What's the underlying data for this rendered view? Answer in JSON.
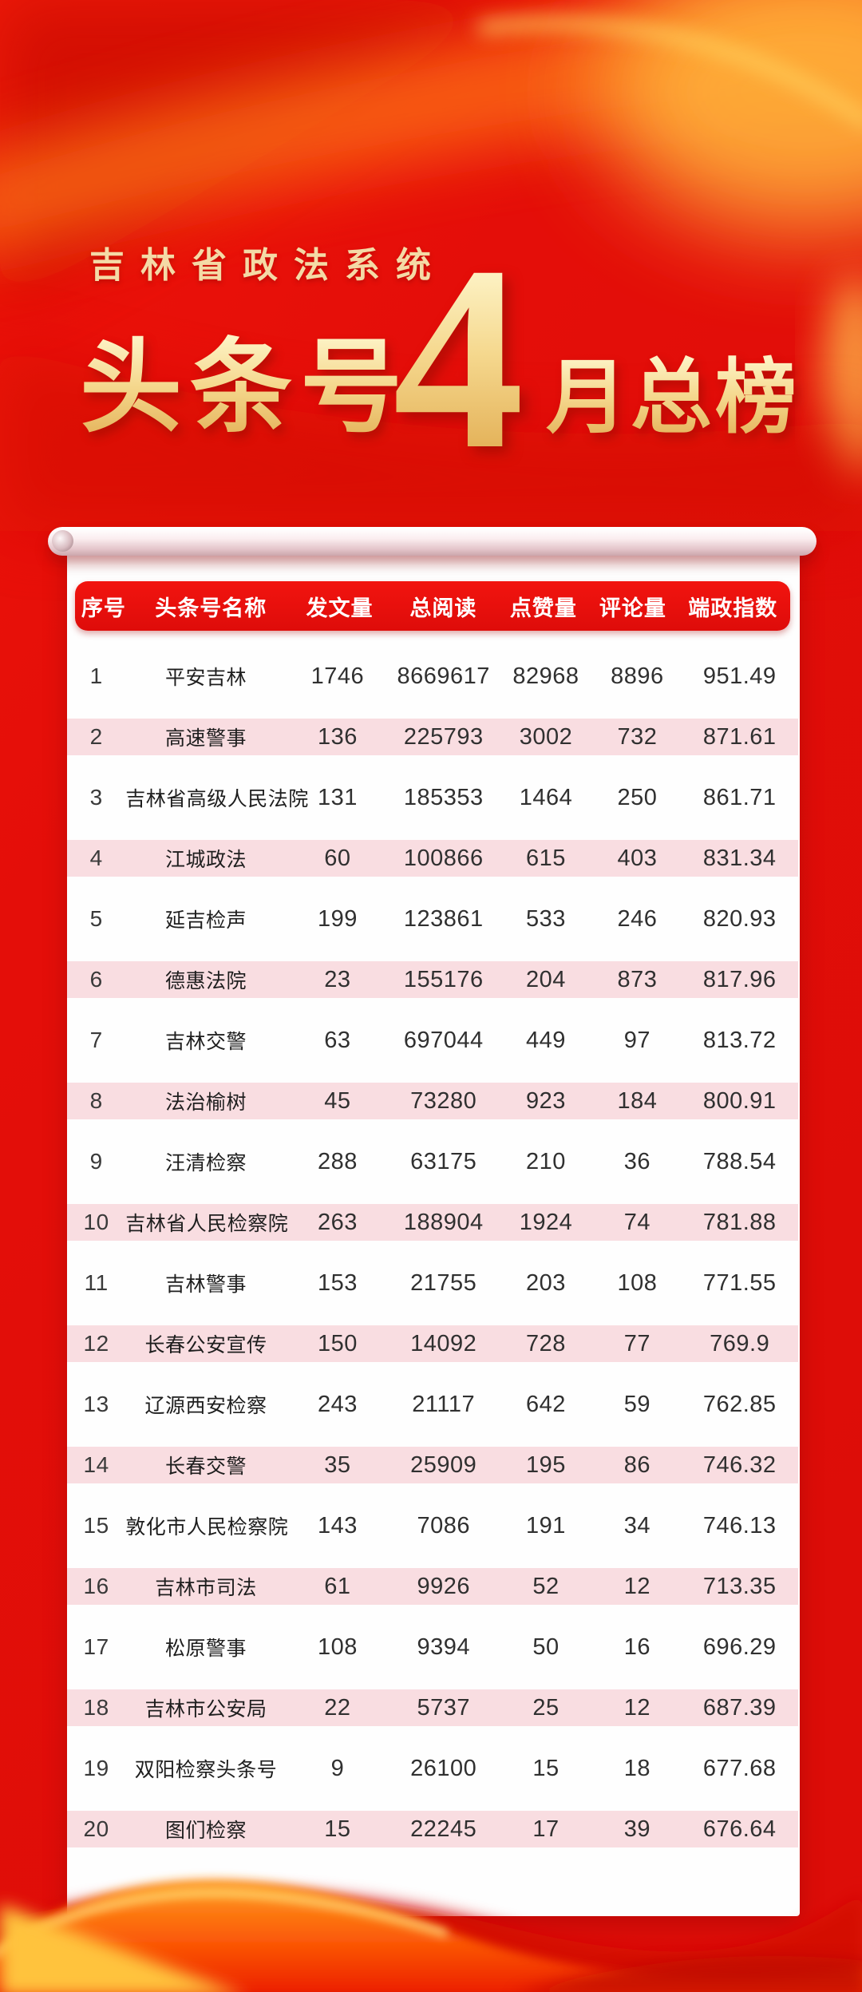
{
  "poster": {
    "subtitle": "吉林省政法系统",
    "title_prefix": "头条号",
    "title_number": "4",
    "title_suffix": "月总榜"
  },
  "colors": {
    "background_red": "#e30f0b",
    "header_bar_red": "#e9100e",
    "row_stripe_pink": "#f9dde1",
    "gold_text": "#f2d389",
    "table_text": "#303030",
    "paper_white": "#fefefe"
  },
  "chart_data": {
    "type": "table",
    "title": "吉林省政法系统头条号4月总榜",
    "columns": [
      "序号",
      "头条号名称",
      "发文量",
      "总阅读",
      "点赞量",
      "评论量",
      "端政指数"
    ],
    "rows": [
      [
        "1",
        "平安吉林",
        "1746",
        "8669617",
        "82968",
        "8896",
        "951.49"
      ],
      [
        "2",
        "高速警事",
        "136",
        "225793",
        "3002",
        "732",
        "871.61"
      ],
      [
        "3",
        "吉林省高级人民法院",
        "131",
        "185353",
        "1464",
        "250",
        "861.71"
      ],
      [
        "4",
        "江城政法",
        "60",
        "100866",
        "615",
        "403",
        "831.34"
      ],
      [
        "5",
        "延吉检声",
        "199",
        "123861",
        "533",
        "246",
        "820.93"
      ],
      [
        "6",
        "德惠法院",
        "23",
        "155176",
        "204",
        "873",
        "817.96"
      ],
      [
        "7",
        "吉林交警",
        "63",
        "697044",
        "449",
        "97",
        "813.72"
      ],
      [
        "8",
        "法治榆树",
        "45",
        "73280",
        "923",
        "184",
        "800.91"
      ],
      [
        "9",
        "汪清检察",
        "288",
        "63175",
        "210",
        "36",
        "788.54"
      ],
      [
        "10",
        "吉林省人民检察院",
        "263",
        "188904",
        "1924",
        "74",
        "781.88"
      ],
      [
        "11",
        "吉林警事",
        "153",
        "21755",
        "203",
        "108",
        "771.55"
      ],
      [
        "12",
        "长春公安宣传",
        "150",
        "14092",
        "728",
        "77",
        "769.9"
      ],
      [
        "13",
        "辽源西安检察",
        "243",
        "21117",
        "642",
        "59",
        "762.85"
      ],
      [
        "14",
        "长春交警",
        "35",
        "25909",
        "195",
        "86",
        "746.32"
      ],
      [
        "15",
        "敦化市人民检察院",
        "143",
        "7086",
        "191",
        "34",
        "746.13"
      ],
      [
        "16",
        "吉林市司法",
        "61",
        "9926",
        "52",
        "12",
        "713.35"
      ],
      [
        "17",
        "松原警事",
        "108",
        "9394",
        "50",
        "16",
        "696.29"
      ],
      [
        "18",
        "吉林市公安局",
        "22",
        "5737",
        "25",
        "12",
        "687.39"
      ],
      [
        "19",
        "双阳检察头条号",
        "9",
        "26100",
        "15",
        "18",
        "677.68"
      ],
      [
        "20",
        "图们检察",
        "15",
        "22245",
        "17",
        "39",
        "676.64"
      ]
    ]
  }
}
